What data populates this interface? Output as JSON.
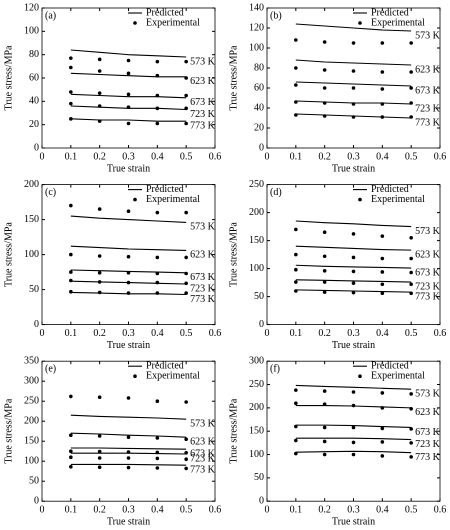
{
  "chart_data": [
    {
      "type": "line",
      "panel": "(a)",
      "x_label": "True strain",
      "y_label": "True stress/MPa",
      "x": [
        0.1,
        0.2,
        0.3,
        0.4,
        0.5
      ],
      "xlim": [
        0,
        0.6
      ],
      "xticks": [
        0,
        0.1,
        0.2,
        0.3,
        0.4,
        0.5,
        0.6
      ],
      "ylim": [
        0,
        120
      ],
      "yticks": [
        0,
        20,
        40,
        60,
        80,
        100,
        120
      ],
      "series": [
        {
          "name": "Predicted",
          "style": "line",
          "color": "#000000",
          "curves": [
            {
              "label": "573 K",
              "values": [
                84,
                82,
                80,
                79,
                78
              ]
            },
            {
              "label": "623 K",
              "values": [
                64,
                63,
                62,
                61,
                61
              ]
            },
            {
              "label": "673 K",
              "values": [
                46,
                45,
                44,
                44,
                43
              ]
            },
            {
              "label": "723 K",
              "values": [
                36,
                35,
                34,
                34,
                33
              ]
            },
            {
              "label": "773 K",
              "values": [
                25,
                24,
                24,
                23,
                23
              ]
            }
          ]
        },
        {
          "name": "Experimental",
          "style": "points",
          "color": "#000000",
          "curves": [
            {
              "values": [
                77,
                76,
                75,
                74,
                74
              ]
            },
            {
              "values": [
                69,
                66,
                64,
                62,
                60
              ]
            },
            {
              "values": [
                48,
                47,
                46,
                45,
                45
              ]
            },
            {
              "values": [
                38,
                36,
                35,
                34,
                34
              ]
            },
            {
              "values": [
                25,
                23,
                21,
                21,
                21
              ]
            }
          ]
        }
      ]
    },
    {
      "type": "line",
      "panel": "(b)",
      "x_label": "True strain",
      "y_label": "True stress/MPa",
      "x": [
        0.1,
        0.2,
        0.3,
        0.4,
        0.5
      ],
      "xlim": [
        0,
        0.6
      ],
      "xticks": [
        0,
        0.1,
        0.2,
        0.3,
        0.4,
        0.5,
        0.6
      ],
      "ylim": [
        0,
        140
      ],
      "yticks": [
        0,
        20,
        40,
        60,
        80,
        100,
        120,
        140
      ],
      "series": [
        {
          "name": "Predicted",
          "style": "line",
          "color": "#000000",
          "curves": [
            {
              "label": "573 K",
              "values": [
                124,
                122,
                120,
                118,
                117
              ]
            },
            {
              "label": "623 K",
              "values": [
                88,
                86,
                85,
                84,
                83
              ]
            },
            {
              "label": "673 K",
              "values": [
                66,
                65,
                64,
                63,
                62
              ]
            },
            {
              "label": "723 K",
              "values": [
                47,
                46,
                45,
                45,
                44
              ]
            },
            {
              "label": "773 K",
              "values": [
                34,
                33,
                32,
                31,
                30
              ]
            }
          ]
        },
        {
          "name": "Experimental",
          "style": "points",
          "color": "#000000",
          "curves": [
            {
              "values": [
                108,
                106,
                105,
                105,
                105
              ]
            },
            {
              "values": [
                80,
                78,
                77,
                76,
                76
              ]
            },
            {
              "values": [
                63,
                60,
                60,
                59,
                60
              ]
            },
            {
              "values": [
                46,
                45,
                44,
                44,
                45
              ]
            },
            {
              "values": [
                33,
                32,
                31,
                31,
                31
              ]
            }
          ]
        }
      ]
    },
    {
      "type": "line",
      "panel": "(c)",
      "x_label": "True strain",
      "y_label": "True stress/MPa",
      "x": [
        0.1,
        0.2,
        0.3,
        0.4,
        0.5
      ],
      "xlim": [
        0,
        0.6
      ],
      "xticks": [
        0,
        0.1,
        0.2,
        0.3,
        0.4,
        0.5,
        0.6
      ],
      "ylim": [
        0,
        200
      ],
      "yticks": [
        0,
        50,
        100,
        150,
        200
      ],
      "series": [
        {
          "name": "Predicted",
          "style": "line",
          "color": "#000000",
          "curves": [
            {
              "label": "573 K",
              "values": [
                155,
                152,
                150,
                148,
                146
              ]
            },
            {
              "label": "623 K",
              "values": [
                112,
                110,
                108,
                107,
                106
              ]
            },
            {
              "label": "673 K",
              "values": [
                78,
                77,
                76,
                75,
                74
              ]
            },
            {
              "label": "723 K",
              "values": [
                62,
                61,
                60,
                59,
                58
              ]
            },
            {
              "label": "773 K",
              "values": [
                46,
                45,
                44,
                44,
                43
              ]
            }
          ]
        },
        {
          "name": "Experimental",
          "style": "points",
          "color": "#000000",
          "curves": [
            {
              "values": [
                170,
                165,
                162,
                160,
                160
              ]
            },
            {
              "values": [
                100,
                98,
                97,
                96,
                96
              ]
            },
            {
              "values": [
                75,
                74,
                74,
                73,
                73
              ]
            },
            {
              "values": [
                63,
                61,
                60,
                60,
                59
              ]
            },
            {
              "values": [
                47,
                46,
                45,
                45,
                45
              ]
            }
          ]
        }
      ]
    },
    {
      "type": "line",
      "panel": "(d)",
      "x_label": "True strain",
      "y_label": "True stress/MPa",
      "x": [
        0.1,
        0.2,
        0.3,
        0.4,
        0.5
      ],
      "xlim": [
        0,
        0.6
      ],
      "xticks": [
        0,
        0.1,
        0.2,
        0.3,
        0.4,
        0.5,
        0.6
      ],
      "ylim": [
        0,
        250
      ],
      "yticks": [
        0,
        50,
        100,
        150,
        200,
        250
      ],
      "series": [
        {
          "name": "Predicted",
          "style": "line",
          "color": "#000000",
          "curves": [
            {
              "label": "573 K",
              "values": [
                185,
                182,
                180,
                177,
                175
              ]
            },
            {
              "label": "623 K",
              "values": [
                140,
                138,
                136,
                134,
                133
              ]
            },
            {
              "label": "673 K",
              "values": [
                106,
                104,
                103,
                102,
                101
              ]
            },
            {
              "label": "723 K",
              "values": [
                80,
                79,
                78,
                77,
                76
              ]
            },
            {
              "label": "773 K",
              "values": [
                62,
                61,
                60,
                59,
                58
              ]
            }
          ]
        },
        {
          "name": "Experimental",
          "style": "points",
          "color": "#000000",
          "curves": [
            {
              "values": [
                170,
                165,
                162,
                158,
                155
              ]
            },
            {
              "values": [
                125,
                122,
                120,
                118,
                118
              ]
            },
            {
              "values": [
                98,
                96,
                95,
                94,
                93
              ]
            },
            {
              "values": [
                76,
                76,
                74,
                72,
                72
              ]
            },
            {
              "values": [
                60,
                58,
                57,
                56,
                56
              ]
            }
          ]
        }
      ]
    },
    {
      "type": "line",
      "panel": "(e)",
      "x_label": "True strain",
      "y_label": "True stress/MPa",
      "x": [
        0.1,
        0.2,
        0.3,
        0.4,
        0.5
      ],
      "xlim": [
        0,
        0.6
      ],
      "xticks": [
        0,
        0.1,
        0.2,
        0.3,
        0.4,
        0.5,
        0.6
      ],
      "ylim": [
        0,
        350
      ],
      "yticks": [
        0,
        50,
        100,
        150,
        200,
        250,
        300,
        350
      ],
      "series": [
        {
          "name": "Predicted",
          "style": "line",
          "color": "#000000",
          "curves": [
            {
              "label": "573 K",
              "values": [
                215,
                212,
                210,
                208,
                205
              ]
            },
            {
              "label": "623 K",
              "values": [
                170,
                168,
                165,
                163,
                160
              ]
            },
            {
              "label": "673 K",
              "values": [
                133,
                133,
                132,
                131,
                130
              ]
            },
            {
              "label": "723 K",
              "values": [
                120,
                120,
                120,
                119,
                118
              ]
            },
            {
              "label": "773 K",
              "values": [
                92,
                92,
                92,
                91,
                90
              ]
            }
          ]
        },
        {
          "name": "Experimental",
          "style": "points",
          "color": "#000000",
          "curves": [
            {
              "values": [
                262,
                260,
                258,
                250,
                248
              ]
            },
            {
              "values": [
                165,
                163,
                160,
                158,
                155
              ]
            },
            {
              "values": [
                125,
                124,
                123,
                122,
                121
              ]
            },
            {
              "values": [
                110,
                108,
                108,
                107,
                105
              ]
            },
            {
              "values": [
                86,
                85,
                84,
                83,
                82
              ]
            }
          ]
        }
      ]
    },
    {
      "type": "line",
      "panel": "(f)",
      "x_label": "True strain",
      "y_label": "True stress/MPa",
      "x": [
        0.1,
        0.2,
        0.3,
        0.4,
        0.5
      ],
      "xlim": [
        0,
        0.6
      ],
      "xticks": [
        0,
        0.1,
        0.2,
        0.3,
        0.4,
        0.5,
        0.6
      ],
      "ylim": [
        0,
        300
      ],
      "yticks": [
        0,
        50,
        100,
        150,
        200,
        250,
        300
      ],
      "series": [
        {
          "name": "Predicted",
          "style": "line",
          "color": "#000000",
          "curves": [
            {
              "label": "573 K",
              "values": [
                248,
                246,
                244,
                242,
                240
              ]
            },
            {
              "label": "623 K",
              "values": [
                205,
                205,
                204,
                202,
                200
              ]
            },
            {
              "label": "673 K",
              "values": [
                163,
                163,
                162,
                160,
                158
              ]
            },
            {
              "label": "723 K",
              "values": [
                135,
                135,
                135,
                134,
                132
              ]
            },
            {
              "label": "773 K",
              "values": [
                105,
                106,
                107,
                106,
                104
              ]
            }
          ]
        },
        {
          "name": "Experimental",
          "style": "points",
          "color": "#000000",
          "curves": [
            {
              "values": [
                238,
                236,
                234,
                232,
                230
              ]
            },
            {
              "values": [
                210,
                208,
                205,
                200,
                198
              ]
            },
            {
              "values": [
                160,
                158,
                158,
                156,
                155
              ]
            },
            {
              "values": [
                130,
                128,
                126,
                127,
                125
              ]
            },
            {
              "values": [
                102,
                100,
                100,
                97,
                95
              ]
            }
          ]
        }
      ]
    }
  ]
}
